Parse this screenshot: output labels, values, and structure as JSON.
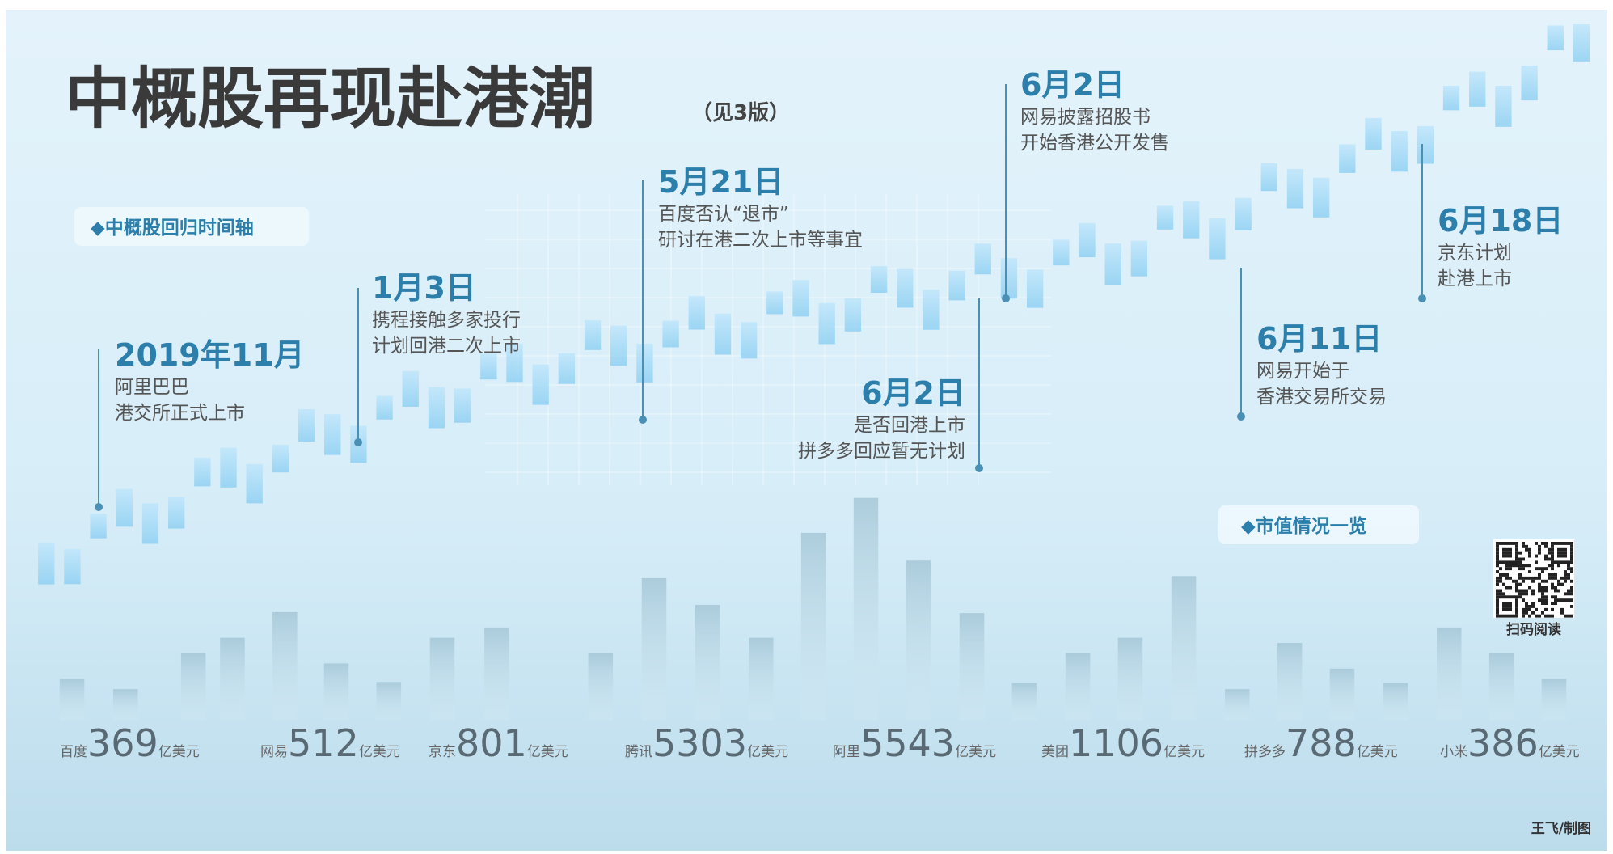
{
  "header": {
    "title": "中概股再现赴港潮",
    "note": "（见3版）"
  },
  "timeline": {
    "label": "◆中概股回归时间轴",
    "events": [
      {
        "date": "2019年11月",
        "lines": [
          "阿里巴巴",
          "港交所正式上市"
        ]
      },
      {
        "date": "1月3日",
        "lines": [
          "携程接触多家投行",
          "计划回港二次上市"
        ]
      },
      {
        "date": "5月21日",
        "lines": [
          "百度否认“退市”",
          "研讨在港二次上市等事宜"
        ]
      },
      {
        "date": "6月2日",
        "lines": [
          "网易披露招股书",
          "开始香港公开发售"
        ]
      },
      {
        "date": "6月2日",
        "lines": [
          "是否回港上市",
          "拼多多回应暂无计划"
        ]
      },
      {
        "date": "6月11日",
        "lines": [
          "网易开始于",
          "香港交易所交易"
        ]
      },
      {
        "date": "6月18日",
        "lines": [
          "京东计划",
          "赴港上市"
        ]
      }
    ]
  },
  "market_cap": {
    "label": "◆市值情况一览",
    "items": [
      {
        "company": "百度",
        "value": 369,
        "unit": "亿美元"
      },
      {
        "company": "网易",
        "value": 512,
        "unit": "亿美元"
      },
      {
        "company": "京东",
        "value": 801,
        "unit": "亿美元"
      },
      {
        "company": "腾讯",
        "value": 5303,
        "unit": "亿美元"
      },
      {
        "company": "阿里",
        "value": 5543,
        "unit": "亿美元"
      },
      {
        "company": "美团",
        "value": 1106,
        "unit": "亿美元"
      },
      {
        "company": "拼多多",
        "value": 788,
        "unit": "亿美元"
      },
      {
        "company": "小米",
        "value": 386,
        "unit": "亿美元"
      }
    ]
  },
  "qr_caption": "扫码阅读",
  "credit": "王飞/制图"
}
